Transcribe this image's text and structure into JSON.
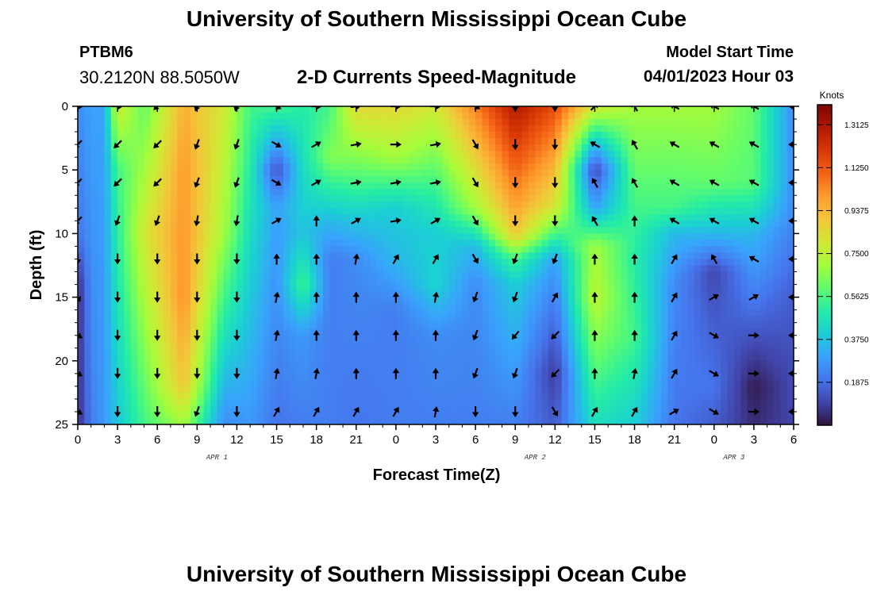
{
  "page": {
    "title": "University of Southern Mississippi Ocean Cube",
    "title_repeat": "University of Southern Mississippi Ocean Cube",
    "station": "PTBM6",
    "coordinates": "30.2120N  88.5050W",
    "subtitle": "2-D Currents Speed-Magnitude",
    "model_start_label": "Model Start Time",
    "model_start_value": "04/01/2023 Hour 03"
  },
  "chart_data": {
    "type": "heatmap",
    "title": "2-D Currents Speed-Magnitude",
    "xlabel": "Forecast Time(Z)",
    "ylabel": "Depth (ft)",
    "colorbar_label": "Knots",
    "x_tick_labels": [
      "0",
      "3",
      "6",
      "9",
      "12",
      "15",
      "18",
      "21",
      "0",
      "3",
      "6",
      "9",
      "12",
      "15",
      "18",
      "21",
      "0",
      "3",
      "6"
    ],
    "date_labels": [
      {
        "label": "APR 1",
        "tick_index": 3.5
      },
      {
        "label": "APR 2",
        "tick_index": 11.5
      },
      {
        "label": "APR 3",
        "tick_index": 16.5
      }
    ],
    "y_ticks": [
      0,
      5,
      10,
      15,
      20,
      25
    ],
    "ylim": [
      25,
      0
    ],
    "colorbar_ticks": [
      "1.3125",
      "1.1250",
      "0.9375",
      "0.7500",
      "0.5625",
      "0.3750",
      "0.1875"
    ],
    "colorbar_range": [
      0,
      1.4
    ],
    "colors": {
      "scale": [
        "#30123b",
        "#4145ab",
        "#4675ed",
        "#39a2fc",
        "#1bcfd4",
        "#24eca6",
        "#61fc6c",
        "#a4fc3b",
        "#d1e834",
        "#f3c63a",
        "#fe9b2d",
        "#f36315",
        "#d93806",
        "#b11901",
        "#7a0402"
      ],
      "arrow": "#000000"
    },
    "speed_columns": [
      {
        "t": 0,
        "profile": [
          [
            0,
            0.25
          ],
          [
            10,
            0.2
          ],
          [
            14,
            0.05
          ],
          [
            25,
            0.05
          ]
        ]
      },
      {
        "t": 1,
        "profile": [
          [
            0,
            0.3
          ],
          [
            25,
            0.22
          ]
        ]
      },
      {
        "t": 2,
        "profile": [
          [
            0,
            0.3
          ],
          [
            25,
            0.28
          ]
        ]
      },
      {
        "t": 3,
        "profile": [
          [
            0,
            0.8
          ],
          [
            5,
            0.55
          ],
          [
            25,
            0.38
          ]
        ]
      },
      {
        "t": 5,
        "profile": [
          [
            0,
            0.6
          ],
          [
            10,
            0.8
          ],
          [
            25,
            0.55
          ]
        ]
      },
      {
        "t": 8,
        "profile": [
          [
            0,
            0.95
          ],
          [
            5,
            1.0
          ],
          [
            15,
            1.02
          ],
          [
            22,
            0.9
          ],
          [
            25,
            0.7
          ]
        ]
      },
      {
        "t": 11,
        "profile": [
          [
            0,
            0.8
          ],
          [
            10,
            0.7
          ],
          [
            25,
            0.25
          ]
        ]
      },
      {
        "t": 13,
        "profile": [
          [
            0,
            0.55
          ],
          [
            25,
            0.28
          ]
        ]
      },
      {
        "t": 15,
        "profile": [
          [
            0,
            0.55
          ],
          [
            5,
            0.12
          ],
          [
            8,
            0.3
          ],
          [
            25,
            0.2
          ]
        ]
      },
      {
        "t": 17,
        "profile": [
          [
            0,
            0.5
          ],
          [
            10,
            0.38
          ],
          [
            14,
            0.55
          ],
          [
            18,
            0.28
          ],
          [
            25,
            0.22
          ]
        ]
      },
      {
        "t": 19,
        "profile": [
          [
            0,
            0.55
          ],
          [
            4,
            0.65
          ],
          [
            9,
            0.35
          ],
          [
            12,
            0.22
          ],
          [
            25,
            0.22
          ]
        ]
      },
      {
        "t": 21,
        "profile": [
          [
            0,
            0.85
          ],
          [
            3,
            0.7
          ],
          [
            6,
            0.55
          ],
          [
            9,
            0.38
          ],
          [
            12,
            0.25
          ],
          [
            25,
            0.2
          ]
        ]
      },
      {
        "t": 24,
        "profile": [
          [
            0,
            0.85
          ],
          [
            4,
            0.7
          ],
          [
            8,
            0.4
          ],
          [
            12,
            0.35
          ],
          [
            16,
            0.22
          ],
          [
            25,
            0.22
          ]
        ]
      },
      {
        "t": 27,
        "profile": [
          [
            0,
            0.8
          ],
          [
            6,
            0.55
          ],
          [
            10,
            0.4
          ],
          [
            14,
            0.42
          ],
          [
            18,
            0.25
          ],
          [
            25,
            0.22
          ]
        ]
      },
      {
        "t": 30,
        "profile": [
          [
            0,
            1.05
          ],
          [
            8,
            0.7
          ],
          [
            11,
            0.35
          ],
          [
            14,
            0.25
          ],
          [
            25,
            0.22
          ]
        ]
      },
      {
        "t": 33,
        "profile": [
          [
            0,
            1.3
          ],
          [
            5,
            1.1
          ],
          [
            10,
            0.9
          ],
          [
            12,
            0.55
          ],
          [
            14,
            0.4
          ],
          [
            25,
            0.22
          ]
        ]
      },
      {
        "t": 36,
        "profile": [
          [
            0,
            1.15
          ],
          [
            8,
            0.8
          ],
          [
            12,
            0.3
          ],
          [
            16,
            0.2
          ],
          [
            21,
            0.08
          ],
          [
            25,
            0.15
          ]
        ]
      },
      {
        "t": 39,
        "profile": [
          [
            0,
            0.8
          ],
          [
            3,
            0.35
          ],
          [
            5,
            0.1
          ],
          [
            8,
            0.3
          ],
          [
            11,
            0.7
          ],
          [
            15,
            0.75
          ],
          [
            20,
            0.6
          ],
          [
            25,
            0.45
          ]
        ]
      },
      {
        "t": 42,
        "profile": [
          [
            0,
            0.7
          ],
          [
            8,
            0.55
          ],
          [
            12,
            0.5
          ],
          [
            18,
            0.55
          ],
          [
            25,
            0.4
          ]
        ]
      },
      {
        "t": 45,
        "profile": [
          [
            0,
            0.7
          ],
          [
            8,
            0.55
          ],
          [
            10,
            0.35
          ],
          [
            14,
            0.25
          ],
          [
            20,
            0.22
          ],
          [
            25,
            0.2
          ]
        ]
      },
      {
        "t": 48,
        "profile": [
          [
            0,
            0.7
          ],
          [
            6,
            0.6
          ],
          [
            10,
            0.35
          ],
          [
            13,
            0.1
          ],
          [
            17,
            0.15
          ],
          [
            22,
            0.2
          ],
          [
            25,
            0.15
          ]
        ]
      },
      {
        "t": 51,
        "profile": [
          [
            0,
            0.6
          ],
          [
            6,
            0.58
          ],
          [
            10,
            0.35
          ],
          [
            15,
            0.22
          ],
          [
            19,
            0.1
          ],
          [
            22,
            0.02
          ],
          [
            25,
            0.05
          ]
        ]
      },
      {
        "t": 54,
        "profile": [
          [
            0,
            0.25
          ],
          [
            8,
            0.25
          ],
          [
            15,
            0.15
          ],
          [
            20,
            0.12
          ],
          [
            25,
            0.1
          ]
        ]
      }
    ],
    "arrows": {
      "depths": [
        0,
        3,
        6,
        9,
        12,
        15,
        18,
        21,
        24
      ],
      "columns": [
        {
          "t": 0,
          "dirs": [
            90,
            225,
            225,
            225,
            180,
            150,
            120,
            120,
            120
          ]
        },
        {
          "t": 3,
          "dirs": [
            90,
            225,
            225,
            200,
            180,
            180,
            180,
            180,
            180
          ]
        },
        {
          "t": 6,
          "dirs": [
            225,
            225,
            225,
            200,
            180,
            180,
            180,
            180,
            180
          ]
        },
        {
          "t": 9,
          "dirs": [
            200,
            200,
            200,
            190,
            180,
            180,
            180,
            180,
            200
          ]
        },
        {
          "t": 12,
          "dirs": [
            200,
            200,
            200,
            190,
            180,
            180,
            180,
            180,
            180
          ]
        },
        {
          "t": 15,
          "dirs": [
            120,
            120,
            120,
            60,
            0,
            10,
            10,
            10,
            30
          ]
        },
        {
          "t": 18,
          "dirs": [
            90,
            60,
            60,
            0,
            0,
            0,
            0,
            10,
            30
          ]
        },
        {
          "t": 21,
          "dirs": [
            80,
            80,
            80,
            60,
            10,
            0,
            0,
            0,
            30
          ]
        },
        {
          "t": 24,
          "dirs": [
            90,
            90,
            80,
            80,
            30,
            0,
            0,
            0,
            30
          ]
        },
        {
          "t": 27,
          "dirs": [
            90,
            80,
            80,
            60,
            30,
            10,
            0,
            0,
            10
          ]
        },
        {
          "t": 30,
          "dirs": [
            120,
            150,
            150,
            150,
            150,
            200,
            200,
            200,
            180
          ]
        },
        {
          "t": 33,
          "dirs": [
            180,
            180,
            180,
            180,
            200,
            200,
            220,
            200,
            180
          ]
        },
        {
          "t": 36,
          "dirs": [
            180,
            180,
            180,
            180,
            200,
            30,
            225,
            225,
            150
          ]
        },
        {
          "t": 39,
          "dirs": [
            45,
            300,
            330,
            330,
            0,
            0,
            0,
            0,
            30
          ]
        },
        {
          "t": 42,
          "dirs": [
            330,
            330,
            330,
            0,
            0,
            0,
            0,
            10,
            30
          ]
        },
        {
          "t": 45,
          "dirs": [
            300,
            300,
            300,
            300,
            30,
            30,
            30,
            30,
            60
          ]
        },
        {
          "t": 48,
          "dirs": [
            300,
            300,
            300,
            300,
            330,
            60,
            120,
            120,
            120
          ]
        },
        {
          "t": 51,
          "dirs": [
            300,
            300,
            300,
            300,
            300,
            60,
            90,
            90,
            90
          ]
        },
        {
          "t": 54,
          "dirs": [
            270,
            270,
            270,
            270,
            270,
            270,
            270,
            270,
            270
          ]
        }
      ]
    }
  }
}
